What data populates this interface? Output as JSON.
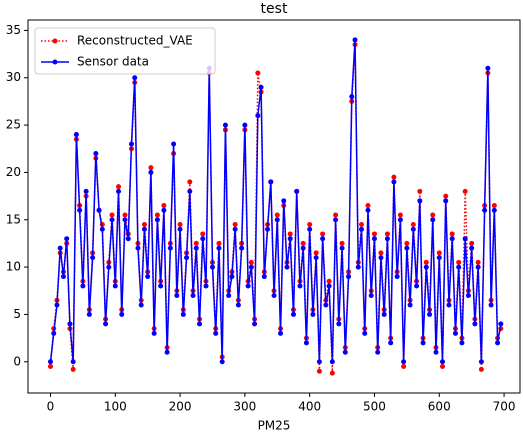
{
  "chart_data": {
    "type": "line",
    "title": "test",
    "x_label": "PM25",
    "x": [
      0,
      5,
      10,
      15,
      20,
      25,
      30,
      35,
      40,
      45,
      50,
      55,
      60,
      65,
      70,
      75,
      80,
      85,
      90,
      95,
      100,
      105,
      110,
      115,
      120,
      125,
      130,
      135,
      140,
      145,
      150,
      155,
      160,
      165,
      170,
      175,
      180,
      185,
      190,
      195,
      200,
      205,
      210,
      215,
      220,
      225,
      230,
      235,
      240,
      245,
      250,
      255,
      260,
      265,
      270,
      275,
      280,
      285,
      290,
      295,
      300,
      305,
      310,
      315,
      320,
      325,
      330,
      335,
      340,
      345,
      350,
      355,
      360,
      365,
      370,
      375,
      380,
      385,
      390,
      395,
      400,
      405,
      410,
      415,
      420,
      425,
      430,
      435,
      440,
      445,
      450,
      455,
      460,
      465,
      470,
      475,
      480,
      485,
      490,
      495,
      500,
      505,
      510,
      515,
      520,
      525,
      530,
      535,
      540,
      545,
      550,
      555,
      560,
      565,
      570,
      575,
      580,
      585,
      590,
      595,
      600,
      605,
      610,
      615,
      620,
      625,
      630,
      635,
      640,
      645,
      650,
      655,
      660,
      665,
      670,
      675,
      680,
      685,
      690,
      695
    ],
    "series": [
      {
        "name": "Reconstructed_VAE",
        "color": "#ff0000",
        "dash": true,
        "values": [
          -0.5,
          3.5,
          6.5,
          11.5,
          9.5,
          12.5,
          3.5,
          -0.8,
          23.5,
          16.5,
          8.5,
          17.5,
          5.5,
          11.5,
          21.5,
          16,
          14.5,
          4.5,
          10.5,
          15.5,
          8.5,
          18.5,
          5.5,
          15.5,
          13.5,
          22.5,
          29.5,
          12.5,
          6.5,
          14.5,
          9.5,
          20.5,
          3.5,
          15.5,
          8.5,
          16.5,
          1.5,
          12.5,
          22,
          7.5,
          14.5,
          5.5,
          11.5,
          19,
          7.5,
          12.5,
          4.5,
          13.5,
          8.5,
          30.5,
          10.5,
          3.5,
          12.5,
          0.5,
          24.5,
          7.5,
          9.5,
          14.5,
          6.5,
          12.5,
          24.5,
          8.5,
          10.5,
          4.5,
          30.5,
          28.5,
          9.5,
          14.5,
          19,
          7.5,
          15.5,
          3.5,
          16.5,
          10.5,
          13.5,
          5.5,
          18,
          8.5,
          12.5,
          2.5,
          14.5,
          5.5,
          11.5,
          -1,
          13.5,
          6.5,
          8.5,
          -1.2,
          15.5,
          4.5,
          12.5,
          1.5,
          9.5,
          27.5,
          33.5,
          10.5,
          14.5,
          3.5,
          16.5,
          7.5,
          13.5,
          1.5,
          11.5,
          5.5,
          13.5,
          2.5,
          19.5,
          9.5,
          15.5,
          -0.5,
          12.5,
          6.5,
          14.5,
          8.5,
          18,
          2.5,
          10.5,
          5.5,
          15.5,
          1.5,
          11.5,
          -0.5,
          17.5,
          6.5,
          13.5,
          3.5,
          10.5,
          2.5,
          18,
          7.5,
          12.5,
          4.5,
          10.5,
          -0.8,
          16.5,
          30.5,
          6.5,
          16.5,
          2.5,
          3.5
        ]
      },
      {
        "name": "Sensor data",
        "color": "#0000ff",
        "dash": false,
        "values": [
          0,
          3,
          6,
          12,
          9,
          13,
          4,
          0,
          24,
          16,
          8,
          18,
          5,
          11,
          22,
          16,
          14,
          4,
          10,
          15,
          8,
          18,
          5,
          15,
          13,
          23,
          30,
          12,
          6,
          14,
          9,
          20,
          3,
          15,
          8,
          16,
          1,
          12,
          23,
          7,
          14,
          5,
          11,
          18,
          7,
          12,
          4,
          13,
          8,
          31,
          10,
          3,
          12,
          0,
          25,
          7,
          9,
          14,
          6,
          12,
          25,
          8,
          10,
          4,
          26,
          29,
          9,
          14,
          19,
          7,
          15,
          3,
          17,
          10,
          13,
          5,
          18,
          8,
          12,
          2,
          14,
          5,
          11,
          0,
          13,
          6,
          8,
          0,
          15,
          4,
          12,
          1,
          9,
          28,
          34,
          10,
          14,
          3,
          16,
          7,
          13,
          1,
          11,
          5,
          13,
          2,
          19,
          9,
          15,
          0,
          12,
          6,
          14,
          8,
          17,
          2,
          10,
          5,
          15,
          1,
          11,
          0,
          17,
          6,
          13,
          3,
          10,
          2,
          13,
          7,
          12,
          4,
          10,
          0,
          16,
          31,
          6,
          16,
          2,
          4
        ]
      }
    ],
    "xlim": [
      -34.7,
      724.6
    ],
    "ylim": [
      -3.3,
      36.1
    ],
    "xticks": [
      0,
      100,
      200,
      300,
      400,
      500,
      600,
      700
    ],
    "yticks": [
      0,
      5,
      10,
      15,
      20,
      25,
      30,
      35
    ],
    "legend": "upper left"
  }
}
